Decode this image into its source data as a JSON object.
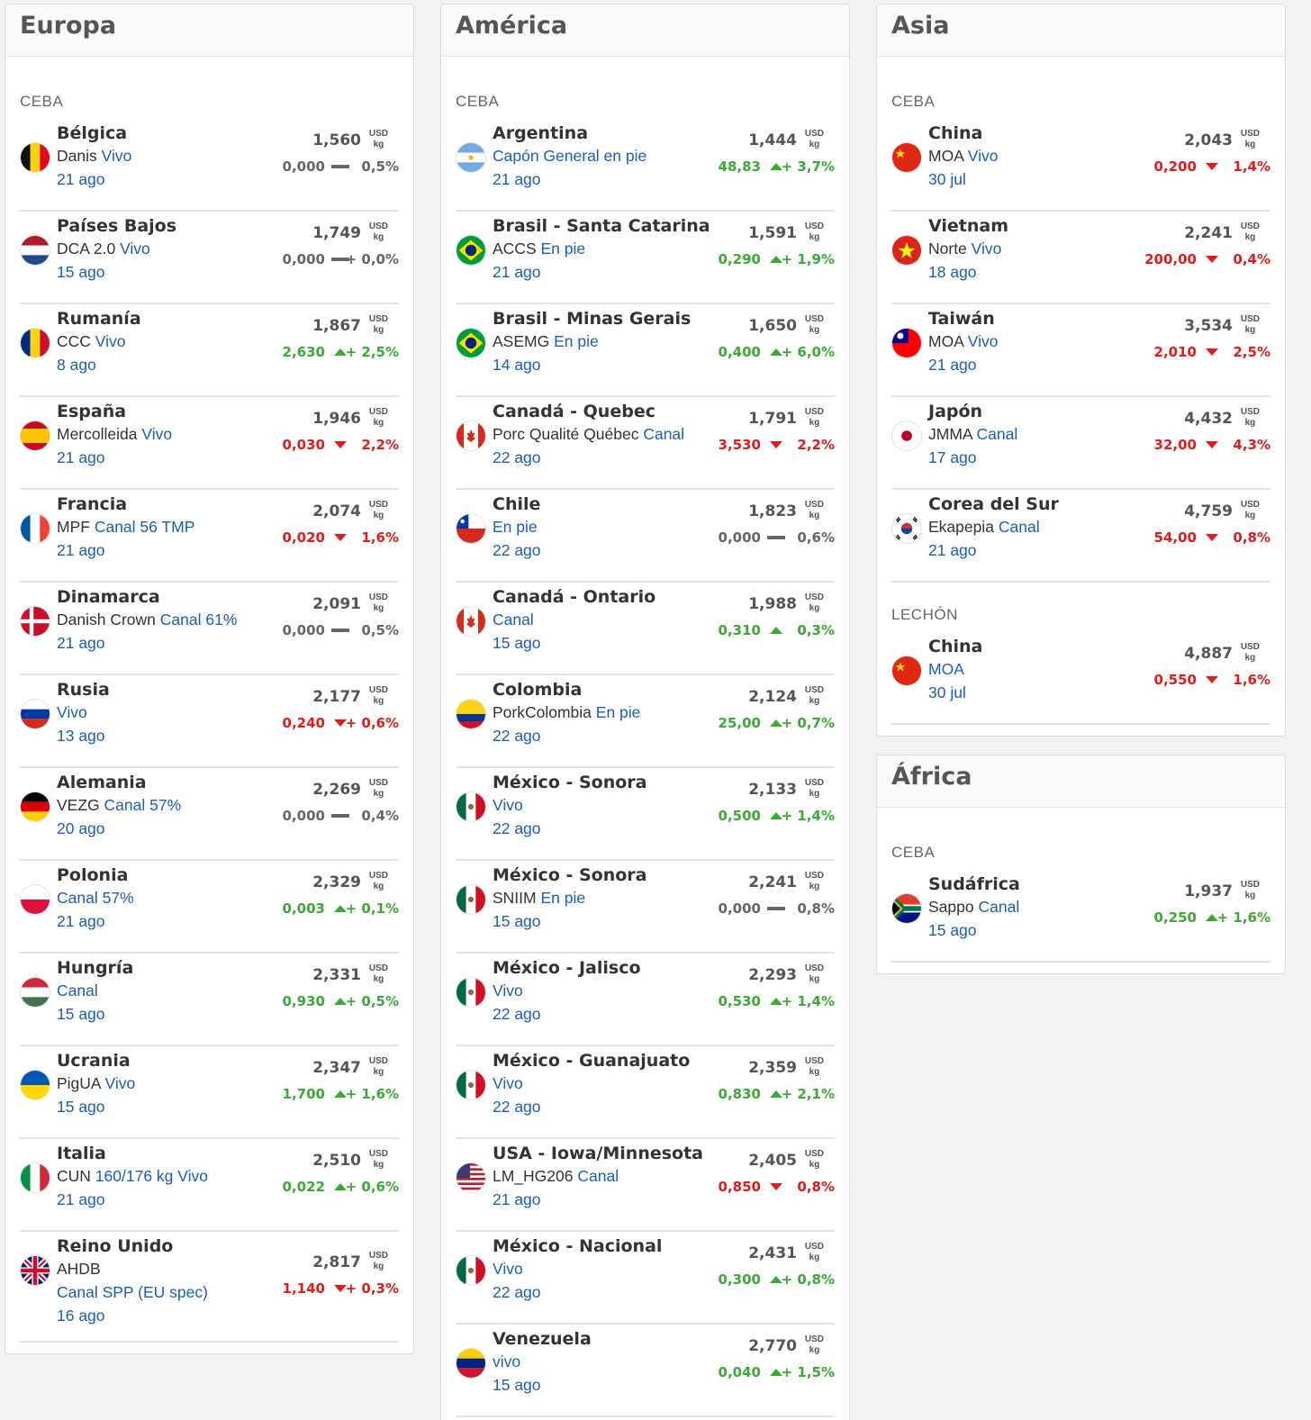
{
  "columns": [
    {
      "key": "europa",
      "left": 5,
      "cards": [
        {
          "title": "Europa",
          "sections": [
            {
              "label": "CEBA",
              "rows": [
                {
                  "name": "Bélgica",
                  "src": "Danis",
                  "type": "Vivo",
                  "date": "21 ago",
                  "price": "1,560",
                  "abs": "0,000",
                  "pct": "0,5%",
                  "dir": "flat",
                  "flag": "be"
                },
                {
                  "name": "Países Bajos",
                  "src": "DCA 2.0",
                  "type": "Vivo",
                  "date": "15 ago",
                  "price": "1,749",
                  "abs": "0,000",
                  "pct": "+ 0,0%",
                  "dir": "flat",
                  "flag": "nl"
                },
                {
                  "name": "Rumanía",
                  "src": "CCC",
                  "type": "Vivo",
                  "date": "8 ago",
                  "price": "1,867",
                  "abs": "2,630",
                  "pct": "+ 2,5%",
                  "dir": "up",
                  "flag": "ro"
                },
                {
                  "name": "España",
                  "src": "Mercolleida",
                  "type": "Vivo",
                  "date": "21 ago",
                  "price": "1,946",
                  "abs": "0,030",
                  "pct": "2,2%",
                  "dir": "down",
                  "flag": "es"
                },
                {
                  "name": "Francia",
                  "src": "MPF",
                  "type": "Canal 56 TMP",
                  "date": "21 ago",
                  "price": "2,074",
                  "abs": "0,020",
                  "pct": "1,6%",
                  "dir": "down",
                  "flag": "fr"
                },
                {
                  "name": "Dinamarca",
                  "src": "Danish Crown",
                  "type": "Canal 61%",
                  "date": "21 ago",
                  "price": "2,091",
                  "abs": "0,000",
                  "pct": "0,5%",
                  "dir": "flat",
                  "flag": "dk"
                },
                {
                  "name": "Rusia",
                  "src": "",
                  "type": "Vivo",
                  "date": "13 ago",
                  "price": "2,177",
                  "abs": "0,240",
                  "pct": "+ 0,6%",
                  "dir": "down",
                  "flag": "ru"
                },
                {
                  "name": "Alemania",
                  "src": "VEZG",
                  "type": "Canal 57%",
                  "date": "20 ago",
                  "price": "2,269",
                  "abs": "0,000",
                  "pct": "0,4%",
                  "dir": "flat",
                  "flag": "de"
                },
                {
                  "name": "Polonia",
                  "src": "",
                  "type": "Canal 57%",
                  "date": "21 ago",
                  "price": "2,329",
                  "abs": "0,003",
                  "pct": "+ 0,1%",
                  "dir": "up",
                  "flag": "pl"
                },
                {
                  "name": "Hungría",
                  "src": "",
                  "type": "Canal",
                  "date": "15 ago",
                  "price": "2,331",
                  "abs": "0,930",
                  "pct": "+ 0,5%",
                  "dir": "up",
                  "flag": "hu"
                },
                {
                  "name": "Ucrania",
                  "src": "PigUA",
                  "type": "Vivo",
                  "date": "15 ago",
                  "price": "2,347",
                  "abs": "1,700",
                  "pct": "+ 1,6%",
                  "dir": "up",
                  "flag": "ua"
                },
                {
                  "name": "Italia",
                  "src": "CUN",
                  "type": "160/176 kg Vivo",
                  "date": "21 ago",
                  "price": "2,510",
                  "abs": "0,022",
                  "pct": "+ 0,6%",
                  "dir": "up",
                  "flag": "it"
                },
                {
                  "name": "Reino Unido",
                  "src": "AHDB",
                  "type": "",
                  "line3": "Canal SPP (EU spec)",
                  "date": "16 ago",
                  "price": "2,817",
                  "abs": "1,140",
                  "pct": "+ 0,3%",
                  "dir": "down",
                  "flag": "gb"
                }
              ]
            }
          ]
        }
      ]
    },
    {
      "key": "america",
      "left": 489,
      "cards": [
        {
          "title": "América",
          "sections": [
            {
              "label": "CEBA",
              "rows": [
                {
                  "name": "Argentina",
                  "src": "",
                  "type": "Capón General en pie",
                  "date": "21 ago",
                  "price": "1,444",
                  "abs": "48,83",
                  "pct": "+ 3,7%",
                  "dir": "up",
                  "flag": "ar"
                },
                {
                  "name": "Brasil - Santa Catarina",
                  "src": "ACCS",
                  "type": "En pie",
                  "date": "21 ago",
                  "price": "1,591",
                  "abs": "0,290",
                  "pct": "+ 1,9%",
                  "dir": "up",
                  "flag": "br"
                },
                {
                  "name": "Brasil - Minas Gerais",
                  "src": "ASEMG",
                  "type": "En pie",
                  "date": "14 ago",
                  "price": "1,650",
                  "abs": "0,400",
                  "pct": "+ 6,0%",
                  "dir": "up",
                  "flag": "br"
                },
                {
                  "name": "Canadá - Quebec",
                  "src": "Porc Qualité Québec",
                  "type": "Canal",
                  "date": "22 ago",
                  "price": "1,791",
                  "abs": "3,530",
                  "pct": "2,2%",
                  "dir": "down",
                  "flag": "ca"
                },
                {
                  "name": "Chile",
                  "src": "",
                  "type": "En pie",
                  "date": "22 ago",
                  "price": "1,823",
                  "abs": "0,000",
                  "pct": "0,6%",
                  "dir": "flat",
                  "flag": "cl"
                },
                {
                  "name": "Canadá - Ontario",
                  "src": "",
                  "type": "Canal",
                  "date": "15 ago",
                  "price": "1,988",
                  "abs": "0,310",
                  "pct": "0,3%",
                  "dir": "up",
                  "flag": "ca"
                },
                {
                  "name": "Colombia",
                  "src": "PorkColombia",
                  "type": "En pie",
                  "date": "22 ago",
                  "price": "2,124",
                  "abs": "25,00",
                  "pct": "+ 0,7%",
                  "dir": "up",
                  "flag": "co"
                },
                {
                  "name": "México - Sonora",
                  "src": "",
                  "type": "Vivo",
                  "date": "22 ago",
                  "price": "2,133",
                  "abs": "0,500",
                  "pct": "+ 1,4%",
                  "dir": "up",
                  "flag": "mx"
                },
                {
                  "name": "México - Sonora",
                  "src": "SNIIM",
                  "type": "En pie",
                  "date": "15 ago",
                  "price": "2,241",
                  "abs": "0,000",
                  "pct": "0,8%",
                  "dir": "flat",
                  "flag": "mx"
                },
                {
                  "name": "México - Jalisco",
                  "src": "",
                  "type": "Vivo",
                  "date": "22 ago",
                  "price": "2,293",
                  "abs": "0,530",
                  "pct": "+ 1,4%",
                  "dir": "up",
                  "flag": "mx"
                },
                {
                  "name": "México - Guanajuato",
                  "src": "",
                  "type": "Vivo",
                  "date": "22 ago",
                  "price": "2,359",
                  "abs": "0,830",
                  "pct": "+ 2,1%",
                  "dir": "up",
                  "flag": "mx"
                },
                {
                  "name": "USA - Iowa/Minnesota",
                  "src": "LM_HG206",
                  "type": "Canal",
                  "date": "21 ago",
                  "price": "2,405",
                  "abs": "0,850",
                  "pct": "0,8%",
                  "dir": "down",
                  "flag": "us"
                },
                {
                  "name": "México - Nacional",
                  "src": "",
                  "type": "Vivo",
                  "date": "22 ago",
                  "price": "2,431",
                  "abs": "0,300",
                  "pct": "+ 0,8%",
                  "dir": "up",
                  "flag": "mx"
                },
                {
                  "name": "Venezuela",
                  "src": "",
                  "type": "vivo",
                  "date": "15 ago",
                  "price": "2,770",
                  "abs": "0,040",
                  "pct": "+ 1,5%",
                  "dir": "up",
                  "flag": "ve"
                }
              ]
            }
          ]
        }
      ]
    },
    {
      "key": "asia",
      "left": 973,
      "cards": [
        {
          "title": "Asia",
          "sections": [
            {
              "label": "CEBA",
              "rows": [
                {
                  "name": "China",
                  "src": "MOA",
                  "type": "Vivo",
                  "date": "30 jul",
                  "price": "2,043",
                  "abs": "0,200",
                  "pct": "1,4%",
                  "dir": "down",
                  "flag": "cn"
                },
                {
                  "name": "Vietnam",
                  "src": "Norte",
                  "type": "Vivo",
                  "date": "18 ago",
                  "price": "2,241",
                  "abs": "200,00",
                  "pct": "0,4%",
                  "dir": "down",
                  "flag": "vn"
                },
                {
                  "name": "Taiwán",
                  "src": "MOA",
                  "type": "Vivo",
                  "date": "21 ago",
                  "price": "3,534",
                  "abs": "2,010",
                  "pct": "2,5%",
                  "dir": "down",
                  "flag": "tw"
                },
                {
                  "name": "Japón",
                  "src": "JMMA",
                  "type": "Canal",
                  "date": "17 ago",
                  "price": "4,432",
                  "abs": "32,00",
                  "pct": "4,3%",
                  "dir": "down",
                  "flag": "jp"
                },
                {
                  "name": "Corea del Sur",
                  "src": "Ekapepia",
                  "type": "Canal",
                  "date": "21 ago",
                  "price": "4,759",
                  "abs": "54,00",
                  "pct": "0,8%",
                  "dir": "down",
                  "flag": "kr"
                }
              ]
            },
            {
              "label": "LECHÓN",
              "rows": [
                {
                  "name": "China",
                  "src": "",
                  "type": "MOA",
                  "date": "30 jul",
                  "price": "4,887",
                  "abs": "0,550",
                  "pct": "1,6%",
                  "dir": "down",
                  "flag": "cn"
                }
              ]
            }
          ]
        },
        {
          "title": "África",
          "sections": [
            {
              "label": "CEBA",
              "rows": [
                {
                  "name": "Sudáfrica",
                  "src": "Sappo",
                  "type": "Canal",
                  "date": "15 ago",
                  "price": "1,937",
                  "abs": "0,250",
                  "pct": "+ 1,6%",
                  "dir": "up",
                  "flag": "za"
                }
              ]
            }
          ]
        }
      ]
    }
  ],
  "unit": {
    "currency": "USD",
    "per": "kg"
  },
  "colors": {
    "up": "#3aaa35",
    "down": "#e21b1b",
    "flat": "#666666",
    "link": "#1a5fb4"
  }
}
